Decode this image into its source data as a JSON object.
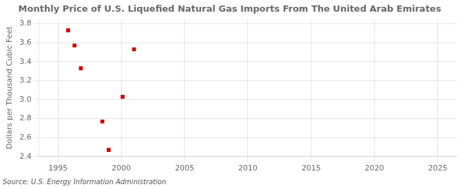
{
  "chart_data": {
    "type": "scatter",
    "title": "Monthly Price of U.S. Liquefied Natural Gas Imports From The United Arab Emirates",
    "ylabel": "Dollars per Thousand Cubic Feet",
    "source": "Source: U.S. Energy Information Administration",
    "x": [
      1995.8,
      1996.3,
      1996.8,
      1998.5,
      1999.0,
      2000.1,
      2001.0
    ],
    "values": [
      3.73,
      3.57,
      3.33,
      2.77,
      2.47,
      3.03,
      3.53
    ],
    "color": "#cc0000",
    "marker": "square",
    "xlim": [
      1993.5,
      2026.5
    ],
    "ylim": [
      2.4,
      3.85
    ],
    "xticks": [
      1995,
      2000,
      2005,
      2010,
      2015,
      2020,
      2025
    ],
    "yticks": [
      2.4,
      2.6,
      2.8,
      {
        "value": 3.0,
        "label": "3.0"
      },
      3.2,
      3.4,
      3.6,
      3.8
    ],
    "grid": true
  }
}
